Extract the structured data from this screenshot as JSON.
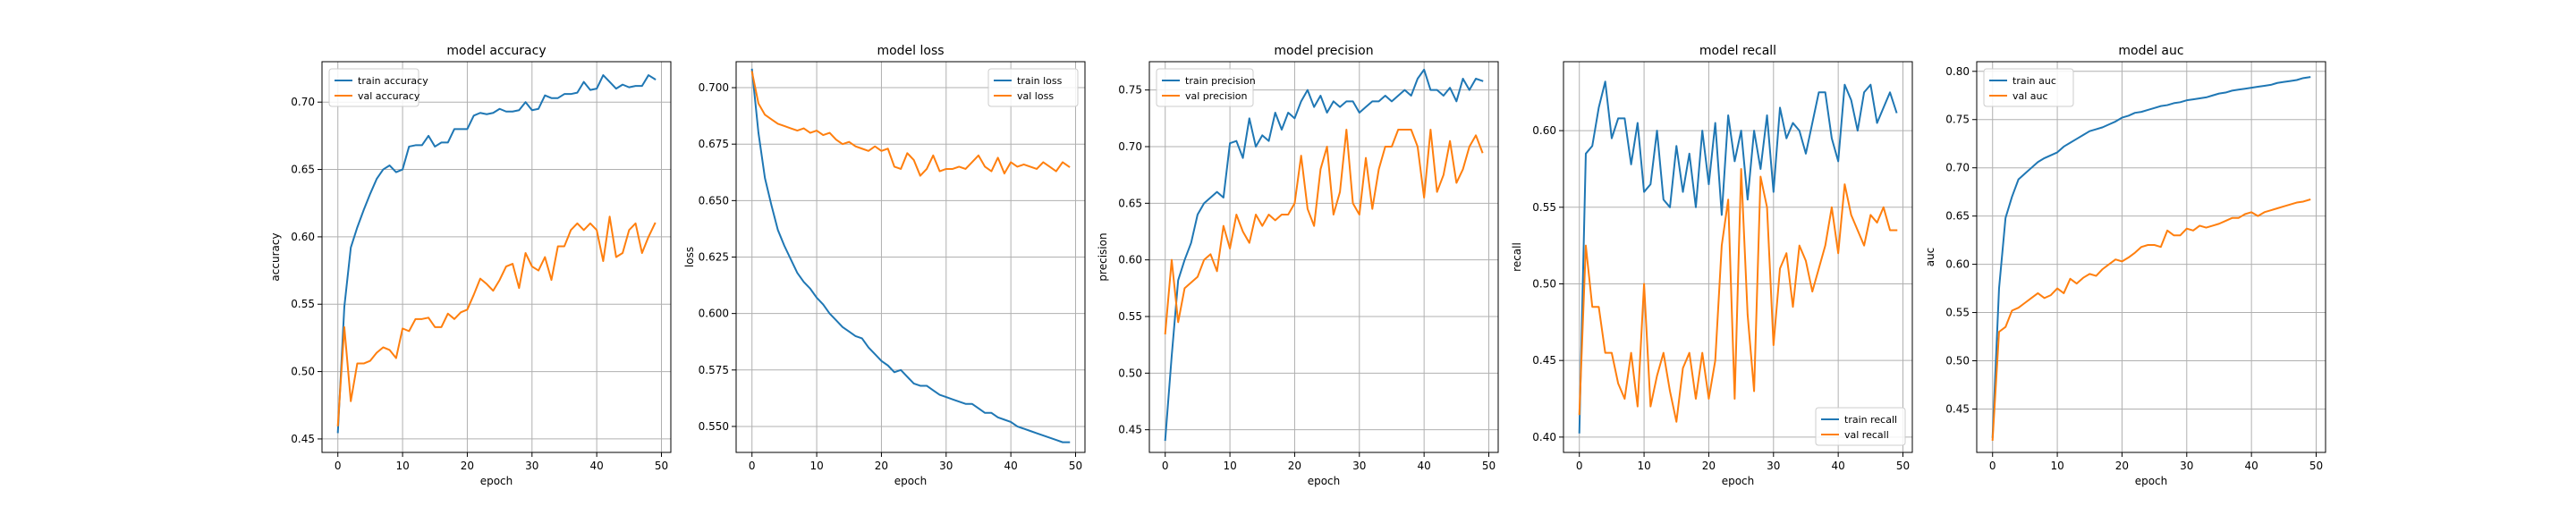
{
  "colors": {
    "train": "#1f77b4",
    "val": "#ff7f0e",
    "grid": "#b0b0b0"
  },
  "chart_data": [
    {
      "type": "line",
      "title": "model accuracy",
      "xlabel": "epoch",
      "ylabel": "accuracy",
      "xlim": [
        -2.45,
        51.45
      ],
      "ylim": [
        0.44,
        0.73
      ],
      "xticks": [
        0,
        10,
        20,
        30,
        40,
        50
      ],
      "yticks": [
        0.45,
        0.5,
        0.55,
        0.6,
        0.65,
        0.7
      ],
      "ytick_labels": [
        "0.45",
        "0.50",
        "0.55",
        "0.60",
        "0.65",
        "0.70"
      ],
      "grid": true,
      "legend": "upper left",
      "series": [
        {
          "name": "train accuracy",
          "key": "train",
          "values": [
            0.455,
            0.548,
            0.592,
            0.607,
            0.62,
            0.632,
            0.643,
            0.65,
            0.653,
            0.648,
            0.65,
            0.667,
            0.668,
            0.668,
            0.675,
            0.667,
            0.67,
            0.67,
            0.68,
            0.68,
            0.68,
            0.69,
            0.692,
            0.691,
            0.692,
            0.695,
            0.693,
            0.693,
            0.694,
            0.7,
            0.694,
            0.695,
            0.705,
            0.703,
            0.703,
            0.706,
            0.706,
            0.707,
            0.715,
            0.709,
            0.71,
            0.72,
            0.715,
            0.71,
            0.713,
            0.711,
            0.712,
            0.712,
            0.72,
            0.717
          ]
        },
        {
          "name": "val accuracy",
          "key": "val",
          "values": [
            0.46,
            0.533,
            0.478,
            0.506,
            0.506,
            0.508,
            0.514,
            0.518,
            0.516,
            0.51,
            0.532,
            0.53,
            0.539,
            0.539,
            0.54,
            0.533,
            0.533,
            0.543,
            0.539,
            0.544,
            0.546,
            0.557,
            0.569,
            0.565,
            0.56,
            0.568,
            0.578,
            0.58,
            0.562,
            0.588,
            0.578,
            0.575,
            0.585,
            0.568,
            0.593,
            0.593,
            0.605,
            0.61,
            0.605,
            0.61,
            0.605,
            0.582,
            0.615,
            0.585,
            0.588,
            0.605,
            0.61,
            0.588,
            0.6,
            0.61
          ]
        }
      ]
    },
    {
      "type": "line",
      "title": "model loss",
      "xlabel": "epoch",
      "ylabel": "loss",
      "xlim": [
        -2.45,
        51.45
      ],
      "ylim": [
        0.5385,
        0.7115
      ],
      "xticks": [
        0,
        10,
        20,
        30,
        40,
        50
      ],
      "yticks": [
        0.55,
        0.575,
        0.6,
        0.625,
        0.65,
        0.675,
        0.7
      ],
      "ytick_labels": [
        "0.550",
        "0.575",
        "0.600",
        "0.625",
        "0.650",
        "0.675",
        "0.700"
      ],
      "grid": true,
      "legend": "upper right",
      "series": [
        {
          "name": "train loss",
          "key": "train",
          "values": [
            0.708,
            0.68,
            0.66,
            0.648,
            0.637,
            0.63,
            0.624,
            0.618,
            0.614,
            0.611,
            0.607,
            0.604,
            0.6,
            0.597,
            0.594,
            0.592,
            0.59,
            0.589,
            0.585,
            0.582,
            0.579,
            0.577,
            0.574,
            0.575,
            0.572,
            0.569,
            0.568,
            0.568,
            0.566,
            0.564,
            0.563,
            0.562,
            0.561,
            0.56,
            0.56,
            0.558,
            0.556,
            0.556,
            0.554,
            0.553,
            0.552,
            0.55,
            0.549,
            0.548,
            0.547,
            0.546,
            0.545,
            0.544,
            0.543,
            0.543
          ]
        },
        {
          "name": "val loss",
          "key": "val",
          "values": [
            0.707,
            0.693,
            0.688,
            0.686,
            0.684,
            0.683,
            0.682,
            0.681,
            0.682,
            0.68,
            0.681,
            0.679,
            0.68,
            0.677,
            0.675,
            0.676,
            0.674,
            0.673,
            0.672,
            0.674,
            0.672,
            0.673,
            0.665,
            0.664,
            0.671,
            0.668,
            0.661,
            0.664,
            0.67,
            0.663,
            0.664,
            0.664,
            0.665,
            0.664,
            0.667,
            0.67,
            0.665,
            0.663,
            0.669,
            0.662,
            0.667,
            0.665,
            0.666,
            0.665,
            0.664,
            0.667,
            0.665,
            0.663,
            0.667,
            0.665
          ]
        }
      ]
    },
    {
      "type": "line",
      "title": "model precision",
      "xlabel": "epoch",
      "ylabel": "precision",
      "xlim": [
        -2.45,
        51.45
      ],
      "ylim": [
        0.43,
        0.775
      ],
      "xticks": [
        0,
        10,
        20,
        30,
        40,
        50
      ],
      "yticks": [
        0.45,
        0.5,
        0.55,
        0.6,
        0.65,
        0.7,
        0.75
      ],
      "ytick_labels": [
        "0.45",
        "0.50",
        "0.55",
        "0.60",
        "0.65",
        "0.70",
        "0.75"
      ],
      "grid": true,
      "legend": "upper left",
      "series": [
        {
          "name": "train precision",
          "key": "train",
          "values": [
            0.441,
            0.515,
            0.582,
            0.6,
            0.615,
            0.64,
            0.65,
            0.655,
            0.66,
            0.655,
            0.703,
            0.705,
            0.69,
            0.725,
            0.7,
            0.71,
            0.705,
            0.73,
            0.715,
            0.73,
            0.725,
            0.74,
            0.75,
            0.735,
            0.745,
            0.73,
            0.74,
            0.735,
            0.74,
            0.74,
            0.73,
            0.735,
            0.74,
            0.74,
            0.745,
            0.74,
            0.745,
            0.75,
            0.745,
            0.76,
            0.768,
            0.75,
            0.75,
            0.745,
            0.752,
            0.74,
            0.76,
            0.75,
            0.76,
            0.758
          ]
        },
        {
          "name": "val precision",
          "key": "val",
          "values": [
            0.535,
            0.6,
            0.545,
            0.575,
            0.58,
            0.585,
            0.6,
            0.605,
            0.59,
            0.63,
            0.61,
            0.64,
            0.625,
            0.615,
            0.64,
            0.63,
            0.64,
            0.635,
            0.64,
            0.64,
            0.65,
            0.692,
            0.645,
            0.63,
            0.68,
            0.7,
            0.64,
            0.66,
            0.715,
            0.65,
            0.64,
            0.69,
            0.645,
            0.68,
            0.7,
            0.7,
            0.715,
            0.715,
            0.715,
            0.7,
            0.655,
            0.715,
            0.66,
            0.675,
            0.705,
            0.668,
            0.68,
            0.7,
            0.71,
            0.695
          ]
        }
      ]
    },
    {
      "type": "line",
      "title": "model recall",
      "xlabel": "epoch",
      "ylabel": "recall",
      "xlim": [
        -2.45,
        51.45
      ],
      "ylim": [
        0.39,
        0.645
      ],
      "xticks": [
        0,
        10,
        20,
        30,
        40,
        50
      ],
      "yticks": [
        0.4,
        0.45,
        0.5,
        0.55,
        0.6
      ],
      "ytick_labels": [
        "0.40",
        "0.45",
        "0.50",
        "0.55",
        "0.60"
      ],
      "grid": true,
      "legend": "lower right",
      "series": [
        {
          "name": "train recall",
          "key": "train",
          "values": [
            0.403,
            0.585,
            0.59,
            0.615,
            0.632,
            0.595,
            0.608,
            0.608,
            0.578,
            0.605,
            0.56,
            0.565,
            0.6,
            0.555,
            0.55,
            0.59,
            0.56,
            0.585,
            0.55,
            0.6,
            0.565,
            0.605,
            0.545,
            0.61,
            0.58,
            0.6,
            0.555,
            0.6,
            0.575,
            0.61,
            0.56,
            0.615,
            0.595,
            0.605,
            0.6,
            0.585,
            0.605,
            0.625,
            0.625,
            0.595,
            0.58,
            0.63,
            0.62,
            0.6,
            0.625,
            0.63,
            0.605,
            0.615,
            0.625,
            0.612
          ]
        },
        {
          "name": "val recall",
          "key": "val",
          "values": [
            0.415,
            0.525,
            0.485,
            0.485,
            0.455,
            0.455,
            0.435,
            0.425,
            0.455,
            0.42,
            0.5,
            0.42,
            0.44,
            0.455,
            0.43,
            0.41,
            0.445,
            0.455,
            0.425,
            0.455,
            0.425,
            0.45,
            0.525,
            0.555,
            0.425,
            0.575,
            0.48,
            0.43,
            0.57,
            0.55,
            0.46,
            0.51,
            0.52,
            0.485,
            0.525,
            0.515,
            0.495,
            0.51,
            0.525,
            0.55,
            0.52,
            0.565,
            0.545,
            0.535,
            0.525,
            0.545,
            0.54,
            0.55,
            0.535,
            0.535
          ]
        }
      ]
    },
    {
      "type": "line",
      "title": "model auc",
      "xlabel": "epoch",
      "ylabel": "auc",
      "xlim": [
        -2.45,
        51.45
      ],
      "ylim": [
        0.405,
        0.81
      ],
      "xticks": [
        0,
        10,
        20,
        30,
        40,
        50
      ],
      "yticks": [
        0.45,
        0.5,
        0.55,
        0.6,
        0.65,
        0.7,
        0.75,
        0.8
      ],
      "ytick_labels": [
        "0.45",
        "0.50",
        "0.55",
        "0.60",
        "0.65",
        "0.70",
        "0.75",
        "0.80"
      ],
      "grid": true,
      "legend": "upper left",
      "series": [
        {
          "name": "train auc",
          "key": "train",
          "values": [
            0.421,
            0.575,
            0.648,
            0.67,
            0.688,
            0.694,
            0.7,
            0.706,
            0.71,
            0.713,
            0.716,
            0.722,
            0.726,
            0.73,
            0.734,
            0.738,
            0.74,
            0.742,
            0.745,
            0.748,
            0.752,
            0.754,
            0.757,
            0.758,
            0.76,
            0.762,
            0.764,
            0.765,
            0.767,
            0.768,
            0.77,
            0.771,
            0.772,
            0.773,
            0.775,
            0.777,
            0.778,
            0.78,
            0.781,
            0.782,
            0.783,
            0.784,
            0.785,
            0.786,
            0.788,
            0.789,
            0.79,
            0.791,
            0.793,
            0.794
          ]
        },
        {
          "name": "val auc",
          "key": "val",
          "values": [
            0.418,
            0.53,
            0.535,
            0.552,
            0.555,
            0.56,
            0.565,
            0.57,
            0.565,
            0.568,
            0.575,
            0.57,
            0.585,
            0.58,
            0.586,
            0.59,
            0.588,
            0.595,
            0.6,
            0.605,
            0.603,
            0.607,
            0.612,
            0.618,
            0.62,
            0.62,
            0.618,
            0.635,
            0.63,
            0.63,
            0.637,
            0.635,
            0.64,
            0.638,
            0.64,
            0.642,
            0.645,
            0.648,
            0.648,
            0.652,
            0.654,
            0.65,
            0.654,
            0.656,
            0.658,
            0.66,
            0.662,
            0.664,
            0.665,
            0.667
          ]
        }
      ]
    }
  ]
}
